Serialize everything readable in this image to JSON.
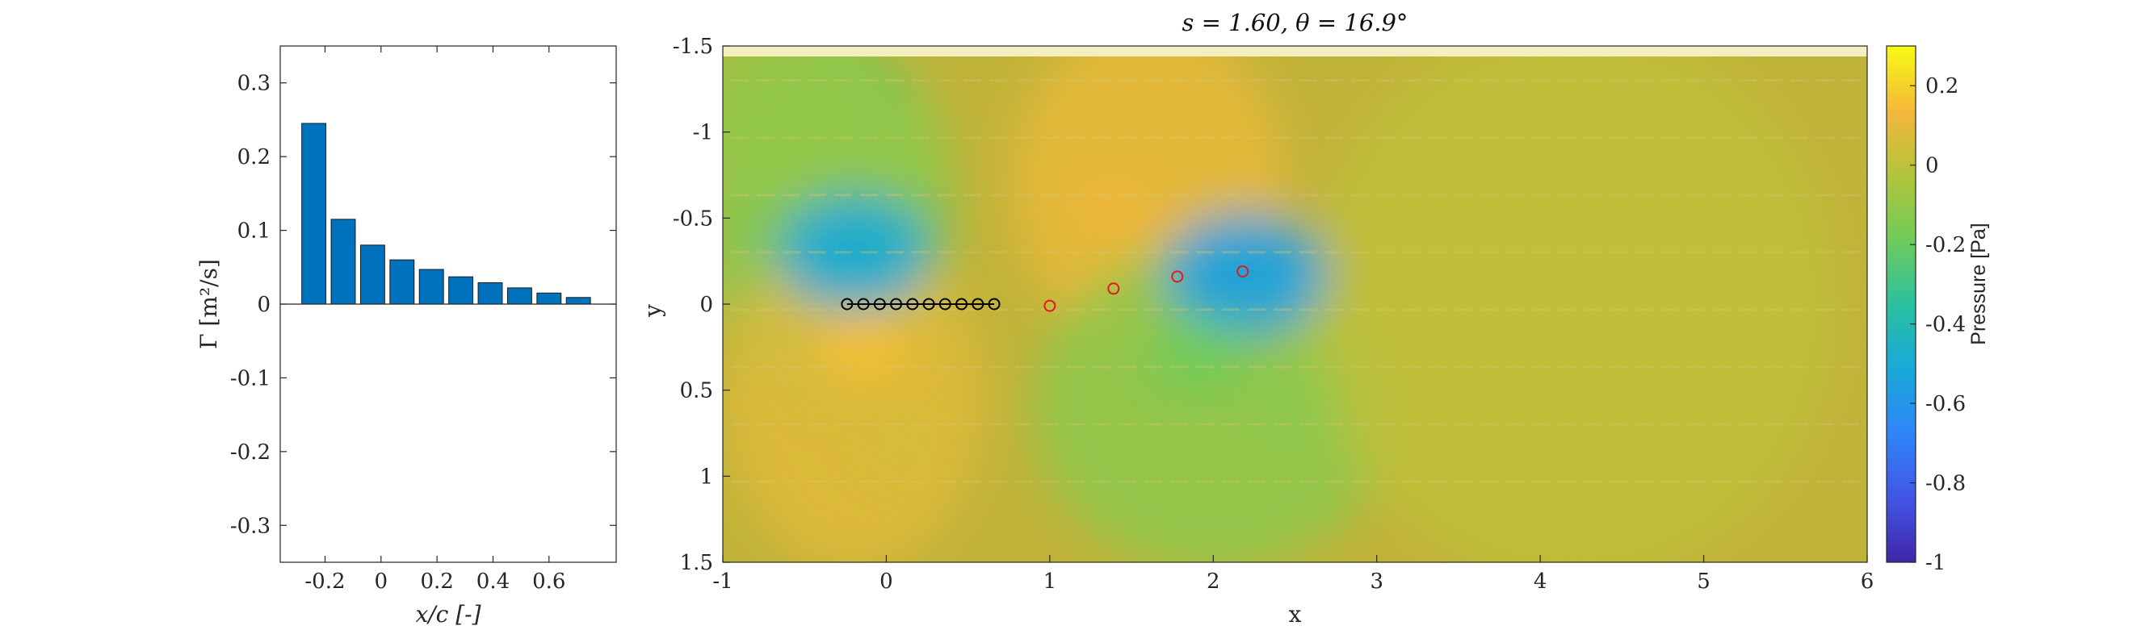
{
  "chart_data": [
    {
      "type": "bar",
      "title": "",
      "xlabel": "x/c [-]",
      "ylabel": "Γ [m²/s]",
      "xlim": [
        -0.36,
        0.84
      ],
      "ylim": [
        -0.35,
        0.35
      ],
      "xticks": [
        -0.2,
        0,
        0.2,
        0.4,
        0.6
      ],
      "xtick_labels": [
        "-0.2",
        "0",
        "0.2",
        "0.4",
        "0.6"
      ],
      "yticks": [
        0.3,
        0.2,
        0.1,
        0,
        -0.1,
        -0.2,
        -0.3
      ],
      "ytick_labels": [
        "0.3",
        "0.2",
        "0.1",
        "0",
        "-0.1",
        "-0.2",
        "-0.3"
      ],
      "bar_color": "#0072BD",
      "x": [
        -0.24,
        -0.135,
        -0.03,
        0.075,
        0.18,
        0.285,
        0.39,
        0.495,
        0.6,
        0.705
      ],
      "values": [
        0.245,
        0.115,
        0.08,
        0.06,
        0.047,
        0.037,
        0.029,
        0.022,
        0.015,
        0.009
      ]
    },
    {
      "type": "heatmap",
      "title": "s = 1.60, θ = 16.9°",
      "xlabel": "x",
      "ylabel": "y",
      "xlim": [
        -1,
        6
      ],
      "ylim": [
        -1.5,
        1.5
      ],
      "y_reversed": true,
      "xticks": [
        -1,
        0,
        1,
        2,
        3,
        4,
        5,
        6
      ],
      "xtick_labels": [
        "-1",
        "0",
        "1",
        "2",
        "3",
        "4",
        "5",
        "6"
      ],
      "yticks": [
        -1.5,
        -1,
        -0.5,
        0,
        0.5,
        1,
        1.5
      ],
      "ytick_labels": [
        "-1.5",
        "-1",
        "-0.5",
        "0",
        "0.5",
        "1",
        "1.5"
      ],
      "colorbar": {
        "label": "Pressure [Pa]",
        "range": [
          -1,
          0.3
        ],
        "ticks": [
          0.2,
          0,
          -0.2,
          -0.4,
          -0.6,
          -0.8,
          -1
        ],
        "tick_labels": [
          "0.2",
          "0",
          "-0.2",
          "-0.4",
          "-0.6",
          "-0.8",
          "-1"
        ],
        "colormap": "parula"
      },
      "bound_vortices": {
        "color": "#000000",
        "x": [
          -0.24,
          -0.14,
          -0.04,
          0.06,
          0.16,
          0.26,
          0.36,
          0.46,
          0.56,
          0.66
        ],
        "y": [
          0,
          0,
          0,
          0,
          0,
          0,
          0,
          0,
          0,
          0
        ]
      },
      "wake_vortices": {
        "color": "#E31A1C",
        "x": [
          1.0,
          1.39,
          1.78,
          2.18
        ],
        "y": [
          0.01,
          -0.09,
          -0.16,
          -0.19
        ]
      },
      "pressure_features": [
        {
          "x": -0.2,
          "y": -0.3,
          "value": -0.5
        },
        {
          "x": -0.15,
          "y": 0.25,
          "value": 0.15
        },
        {
          "x": 1.4,
          "y": -0.55,
          "value": 0.12
        },
        {
          "x": 2.2,
          "y": -0.18,
          "value": -0.55
        },
        {
          "x": 1.9,
          "y": 0.3,
          "value": -0.18
        },
        {
          "x": 2.5,
          "y": 0.55,
          "value": -0.12
        },
        {
          "x": 0.1,
          "y": -0.9,
          "value": -0.1
        },
        {
          "x": 0.1,
          "y": 0.8,
          "value": 0.05
        }
      ]
    }
  ]
}
